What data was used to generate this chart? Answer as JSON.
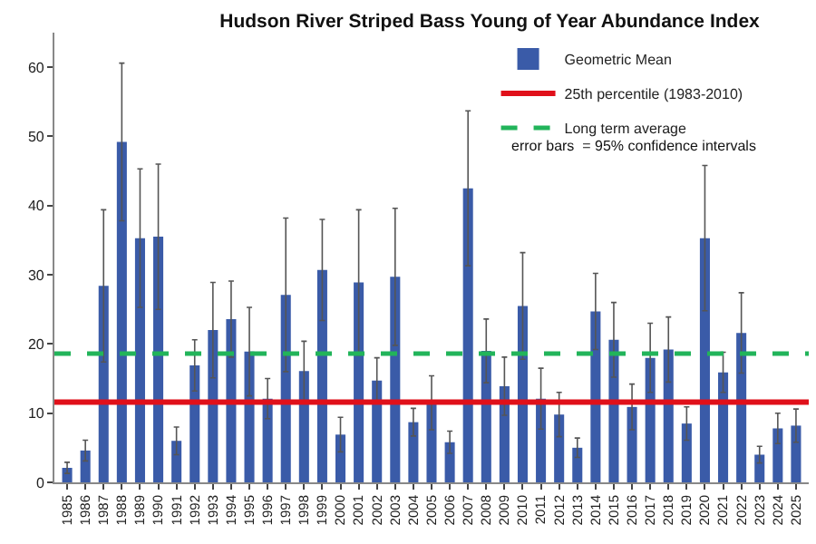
{
  "chart_data": {
    "type": "bar",
    "title": "Hudson River Striped Bass Young of Year Abundance Index",
    "categories": [
      "1985",
      "1986",
      "1987",
      "1988",
      "1989",
      "1990",
      "1991",
      "1992",
      "1993",
      "1994",
      "1995",
      "1996",
      "1997",
      "1998",
      "1999",
      "2000",
      "2001",
      "2002",
      "2003",
      "2004",
      "2005",
      "2006",
      "2007",
      "2008",
      "2009",
      "2010",
      "2011",
      "2012",
      "2013",
      "2014",
      "2015",
      "2016",
      "2017",
      "2018",
      "2019",
      "2020",
      "2021",
      "2022",
      "2023",
      "2024",
      "2025"
    ],
    "series": [
      {
        "name": "Geometric Mean",
        "color": "#3a5ba8",
        "values": [
          2.1,
          4.6,
          28.4,
          49.2,
          35.3,
          35.5,
          6.0,
          16.9,
          22.0,
          23.6,
          18.9,
          12.1,
          27.1,
          16.1,
          30.7,
          6.9,
          28.9,
          14.7,
          29.7,
          8.7,
          11.5,
          5.8,
          42.5,
          19.0,
          13.9,
          25.5,
          12.1,
          9.8,
          5.0,
          24.7,
          20.6,
          10.9,
          18.0,
          19.2,
          8.5,
          35.3,
          15.9,
          21.6,
          4.0,
          7.8,
          8.2
        ],
        "errors": [
          0.8,
          1.5,
          11.0,
          11.4,
          10.0,
          10.5,
          2.0,
          3.7,
          6.9,
          5.5,
          6.4,
          2.9,
          11.1,
          4.3,
          7.3,
          2.5,
          10.5,
          3.3,
          9.9,
          2.0,
          3.9,
          1.6,
          11.2,
          4.6,
          4.2,
          7.7,
          4.4,
          3.2,
          1.4,
          5.5,
          5.4,
          3.3,
          5.0,
          4.7,
          2.4,
          10.5,
          2.9,
          5.8,
          1.2,
          2.2,
          2.4
        ]
      }
    ],
    "ref_lines": [
      {
        "axis": "y",
        "value": 11.6,
        "label": "25th percentile (1983-2010)",
        "color": "#e0101a",
        "line_style": "solid"
      },
      {
        "axis": "y",
        "value": 18.6,
        "label": "Long term average",
        "color": "#22b45a",
        "line_style": "dashed"
      }
    ],
    "annotations": [
      "error bars  = 95% confidence intervals"
    ],
    "ylim": [
      0,
      65
    ],
    "yticks": [
      0,
      10,
      20,
      30,
      40,
      50,
      60
    ],
    "grid": false,
    "legend": "top right"
  }
}
